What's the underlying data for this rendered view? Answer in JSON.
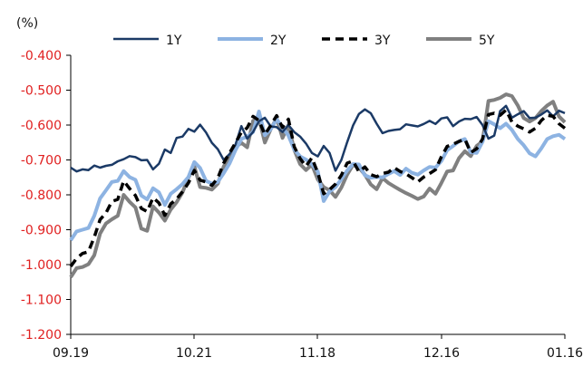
{
  "chart_data": {
    "type": "line",
    "unit_label": "(%)",
    "ylim": [
      -1.2,
      -0.4
    ],
    "y_ticks": [
      "-0.400",
      "-0.500",
      "-0.600",
      "-0.700",
      "-0.800",
      "-0.900",
      "-1.000",
      "-1.100",
      "-1.200"
    ],
    "x_ticks": [
      "09.19",
      "10.21",
      "11.18",
      "12.16",
      "01.16"
    ],
    "grid": false,
    "legend_position": "top",
    "colors": {
      "1Y": "#1b3a66",
      "2Y": "#8db3e2",
      "3Y": "#000000",
      "5Y": "#808080",
      "tick_y": "#e02020"
    },
    "series": [
      {
        "name": "1Y",
        "values": [
          -0.722,
          -0.733,
          -0.727,
          -0.729,
          -0.716,
          -0.722,
          -0.717,
          -0.714,
          -0.704,
          -0.698,
          -0.689,
          -0.692,
          -0.701,
          -0.7,
          -0.727,
          -0.711,
          -0.67,
          -0.68,
          -0.637,
          -0.633,
          -0.611,
          -0.619,
          -0.599,
          -0.621,
          -0.651,
          -0.669,
          -0.7,
          -0.683,
          -0.656,
          -0.603,
          -0.639,
          -0.62,
          -0.589,
          -0.579,
          -0.604,
          -0.606,
          -0.62,
          -0.6,
          -0.62,
          -0.633,
          -0.653,
          -0.68,
          -0.69,
          -0.66,
          -0.68,
          -0.731,
          -0.7,
          -0.649,
          -0.601,
          -0.568,
          -0.555,
          -0.566,
          -0.596,
          -0.623,
          -0.617,
          -0.614,
          -0.612,
          -0.598,
          -0.601,
          -0.604,
          -0.597,
          -0.588,
          -0.597,
          -0.581,
          -0.578,
          -0.603,
          -0.59,
          -0.582,
          -0.583,
          -0.577,
          -0.6,
          -0.639,
          -0.63,
          -0.56,
          -0.545,
          -0.579,
          -0.569,
          -0.56,
          -0.58,
          -0.579,
          -0.57,
          -0.558,
          -0.575,
          -0.559,
          -0.566
        ]
      },
      {
        "name": "2Y",
        "values": [
          -0.93,
          -0.905,
          -0.9,
          -0.895,
          -0.86,
          -0.81,
          -0.787,
          -0.763,
          -0.76,
          -0.732,
          -0.749,
          -0.757,
          -0.802,
          -0.813,
          -0.781,
          -0.793,
          -0.829,
          -0.797,
          -0.784,
          -0.769,
          -0.749,
          -0.706,
          -0.723,
          -0.76,
          -0.768,
          -0.763,
          -0.738,
          -0.71,
          -0.672,
          -0.64,
          -0.633,
          -0.62,
          -0.561,
          -0.629,
          -0.612,
          -0.583,
          -0.607,
          -0.63,
          -0.67,
          -0.69,
          -0.699,
          -0.712,
          -0.733,
          -0.818,
          -0.79,
          -0.778,
          -0.755,
          -0.73,
          -0.712,
          -0.713,
          -0.744,
          -0.751,
          -0.749,
          -0.75,
          -0.74,
          -0.732,
          -0.743,
          -0.725,
          -0.737,
          -0.742,
          -0.73,
          -0.72,
          -0.722,
          -0.703,
          -0.672,
          -0.66,
          -0.647,
          -0.64,
          -0.678,
          -0.68,
          -0.648,
          -0.589,
          -0.598,
          -0.609,
          -0.596,
          -0.614,
          -0.64,
          -0.658,
          -0.681,
          -0.69,
          -0.667,
          -0.64,
          -0.632,
          -0.628,
          -0.64
        ]
      },
      {
        "name": "3Y",
        "values": [
          -1.005,
          -0.982,
          -0.968,
          -0.963,
          -0.921,
          -0.871,
          -0.852,
          -0.819,
          -0.813,
          -0.76,
          -0.782,
          -0.802,
          -0.839,
          -0.848,
          -0.808,
          -0.823,
          -0.859,
          -0.826,
          -0.812,
          -0.791,
          -0.766,
          -0.73,
          -0.758,
          -0.763,
          -0.773,
          -0.752,
          -0.709,
          -0.68,
          -0.651,
          -0.621,
          -0.608,
          -0.575,
          -0.587,
          -0.627,
          -0.601,
          -0.573,
          -0.607,
          -0.583,
          -0.662,
          -0.696,
          -0.718,
          -0.694,
          -0.737,
          -0.797,
          -0.785,
          -0.769,
          -0.744,
          -0.709,
          -0.703,
          -0.734,
          -0.72,
          -0.742,
          -0.748,
          -0.739,
          -0.735,
          -0.722,
          -0.733,
          -0.74,
          -0.751,
          -0.763,
          -0.749,
          -0.739,
          -0.728,
          -0.691,
          -0.661,
          -0.655,
          -0.647,
          -0.64,
          -0.679,
          -0.668,
          -0.64,
          -0.57,
          -0.566,
          -0.572,
          -0.557,
          -0.591,
          -0.603,
          -0.611,
          -0.62,
          -0.609,
          -0.587,
          -0.572,
          -0.575,
          -0.596,
          -0.609
        ]
      },
      {
        "name": "5Y",
        "values": [
          -1.036,
          -1.01,
          -1.007,
          -0.999,
          -0.973,
          -0.911,
          -0.882,
          -0.87,
          -0.86,
          -0.8,
          -0.82,
          -0.836,
          -0.897,
          -0.903,
          -0.833,
          -0.851,
          -0.874,
          -0.842,
          -0.821,
          -0.793,
          -0.751,
          -0.718,
          -0.778,
          -0.78,
          -0.785,
          -0.768,
          -0.719,
          -0.69,
          -0.663,
          -0.651,
          -0.664,
          -0.588,
          -0.581,
          -0.65,
          -0.612,
          -0.58,
          -0.637,
          -0.6,
          -0.671,
          -0.712,
          -0.729,
          -0.713,
          -0.756,
          -0.778,
          -0.787,
          -0.806,
          -0.779,
          -0.742,
          -0.714,
          -0.722,
          -0.742,
          -0.77,
          -0.784,
          -0.752,
          -0.766,
          -0.776,
          -0.786,
          -0.795,
          -0.803,
          -0.812,
          -0.805,
          -0.782,
          -0.797,
          -0.766,
          -0.733,
          -0.73,
          -0.695,
          -0.675,
          -0.689,
          -0.66,
          -0.647,
          -0.531,
          -0.528,
          -0.522,
          -0.512,
          -0.517,
          -0.544,
          -0.58,
          -0.59,
          -0.58,
          -0.56,
          -0.544,
          -0.533,
          -0.575,
          -0.592
        ]
      }
    ]
  }
}
